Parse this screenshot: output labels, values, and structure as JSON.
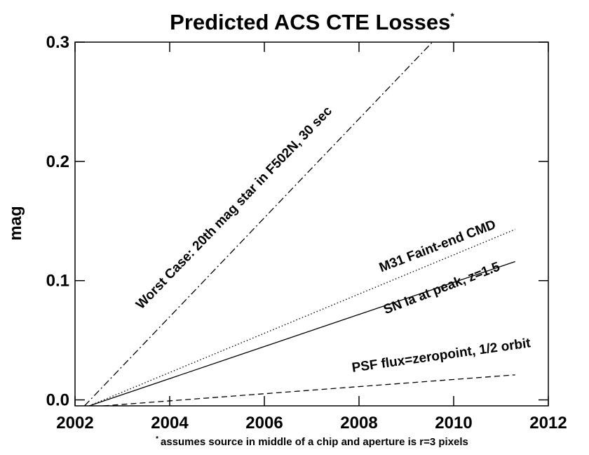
{
  "chart_data": {
    "type": "line",
    "title": "Predicted ACS CTE Losses",
    "title_superscript": "*",
    "ylabel": "mag",
    "footnote_marker": "*",
    "footnote": "assumes source in middle of a chip and aperture is r=3 pixels",
    "xlim": [
      2002,
      2012
    ],
    "xticks": [
      2002,
      2004,
      2006,
      2008,
      2010,
      2012
    ],
    "ylim": [
      -0.005,
      0.3
    ],
    "yticks": [
      {
        "value": 0,
        "label": "0.0"
      },
      0.1,
      0.2,
      0.3
    ],
    "series": [
      {
        "label": "Worst Case: 20th mag star in F502N, 30 sec",
        "color": "#000000",
        "dash": "10 4 2 4",
        "x": [
          2002.2,
          2009.55
        ],
        "values": [
          -0.005,
          0.3
        ]
      },
      {
        "label": "M31 Faint-end CMD",
        "color": "#000000",
        "dash": "1.5 3",
        "x": [
          2002.3,
          2011.3
        ],
        "values": [
          -0.005,
          0.143
        ]
      },
      {
        "label": "SN Ia at peak, z=1.5",
        "color": "#000000",
        "dash": "none",
        "x": [
          2002.3,
          2011.3
        ],
        "values": [
          -0.005,
          0.116
        ]
      },
      {
        "label": "PSF flux=zeropoint, 1/2 orbit",
        "color": "#000000",
        "dash": "8 5",
        "x": [
          2002.6,
          2011.3
        ],
        "values": [
          -0.005,
          0.021
        ]
      }
    ]
  }
}
